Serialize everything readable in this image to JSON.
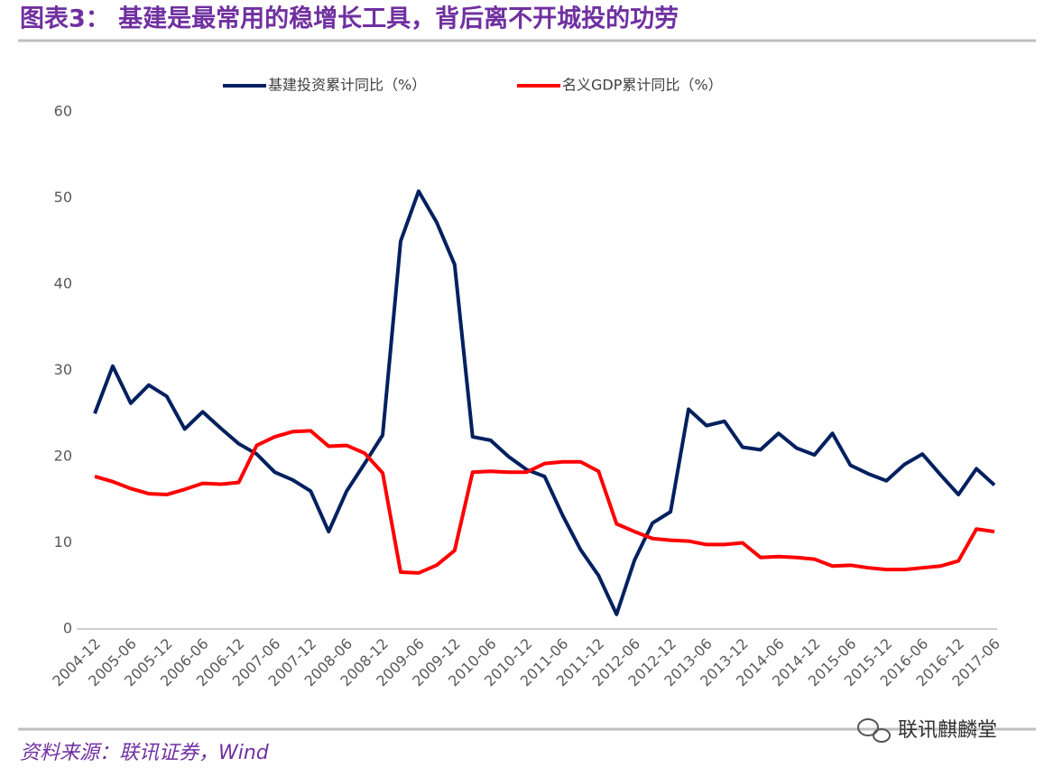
{
  "chart_data": {
    "type": "line",
    "title": "图表3：  基建是最常用的稳增长工具，背后离不开城投的功劳",
    "source": "资料来源：联讯证券，Wind",
    "watermark": "联讯麒麟堂",
    "categories": [
      "2004-12",
      null,
      "2005-06",
      null,
      "2005-12",
      null,
      "2006-06",
      null,
      "2006-12",
      null,
      "2007-06",
      null,
      "2007-12",
      null,
      "2008-06",
      null,
      "2008-12",
      null,
      "2009-06",
      null,
      "2009-12",
      null,
      "2010-06",
      null,
      "2010-12",
      null,
      "2011-06",
      null,
      "2011-12",
      null,
      "2012-06",
      null,
      "2012-12",
      null,
      "2013-06",
      null,
      "2013-12",
      null,
      "2014-06",
      null,
      "2014-12",
      null,
      "2015-06",
      null,
      "2015-12",
      null,
      "2016-06",
      null,
      "2016-12",
      null,
      "2017-06"
    ],
    "series": [
      {
        "name": "基建投资累计同比（%）",
        "color": "#002060",
        "values": [
          25,
          30.5,
          26.2,
          28.3,
          27,
          23.2,
          25.2,
          23.3,
          21.5,
          20.3,
          18.2,
          17.3,
          16,
          11.3,
          16,
          19.2,
          22.5,
          45,
          50.8,
          47.2,
          42.3,
          22.3,
          21.9,
          20,
          18.5,
          17.7,
          13.2,
          9.2,
          6.2,
          1.7,
          8,
          12.3,
          13.6,
          25.5,
          23.6,
          24.1,
          21.1,
          20.8,
          22.7,
          21,
          20.2,
          22.7,
          19,
          18,
          17.2,
          19.1,
          20.3,
          17.9,
          15.6,
          18.6,
          16.7
        ]
      },
      {
        "name": "名义GDP累计同比（%）",
        "color": "#ff0000",
        "values": [
          17.7,
          17.1,
          16.3,
          15.7,
          15.6,
          16.2,
          16.9,
          16.8,
          17,
          21.3,
          22.3,
          22.9,
          23,
          21.2,
          21.3,
          20.4,
          18.1,
          6.6,
          6.5,
          7.4,
          9.1,
          18.2,
          18.3,
          18.2,
          18.2,
          19.2,
          19.4,
          19.4,
          18.3,
          12.2,
          11.3,
          10.5,
          10.3,
          10.2,
          9.8,
          9.8,
          10,
          8.3,
          8.4,
          8.3,
          8.1,
          7.3,
          7.4,
          7.1,
          6.9,
          6.9,
          7.1,
          7.3,
          7.9,
          11.6,
          11.3
        ]
      }
    ],
    "ylim": [
      0,
      60
    ],
    "yticks": [
      0,
      10,
      20,
      30,
      40,
      50,
      60
    ],
    "grid": false,
    "legend": "top"
  }
}
